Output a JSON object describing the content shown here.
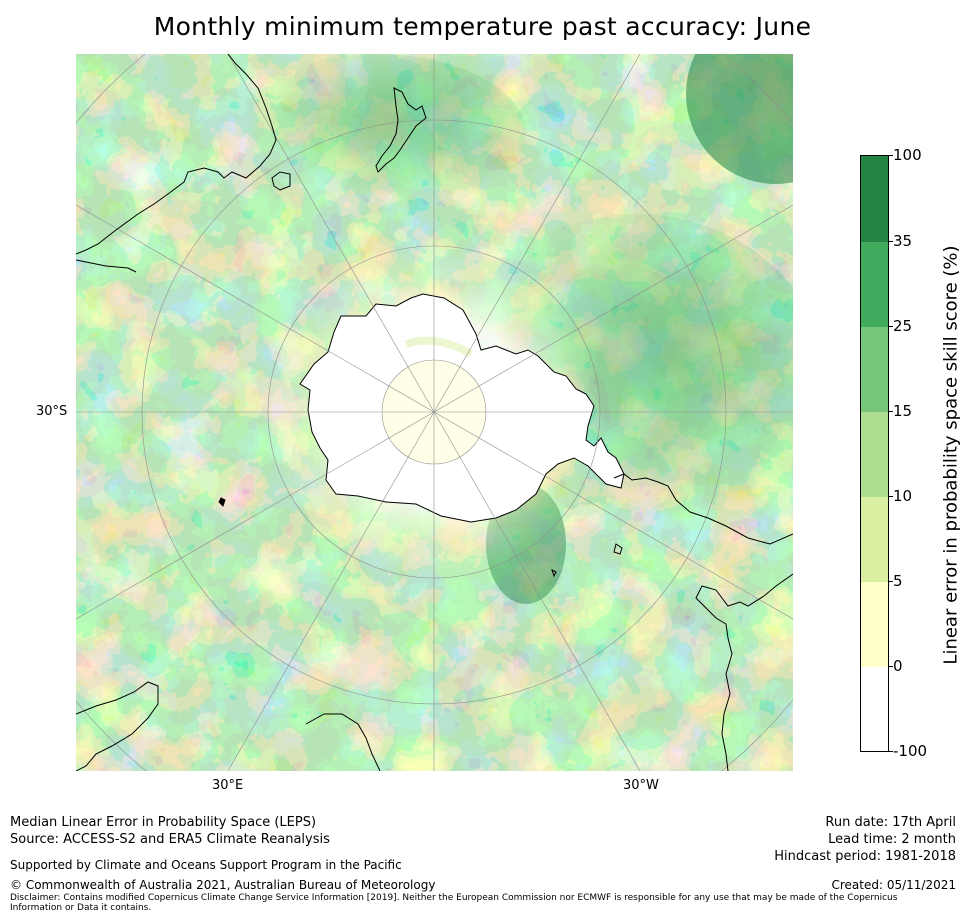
{
  "title": "Monthly minimum temperature past accuracy: June",
  "map": {
    "projection": "south polar stereographic",
    "lon_labels": [
      "30°E",
      "30°W"
    ],
    "lat_label": "30°S",
    "colors": {
      "ocean_base": "#addb90",
      "land_outline": "#000000",
      "graticule": "#9a9a9a"
    }
  },
  "colorbar": {
    "label": "Linear error in probability space skill score (%)",
    "ticks": [
      "100",
      "35",
      "25",
      "15",
      "10",
      "5",
      "0",
      "-100"
    ],
    "bins": [
      {
        "range": "35 to 100",
        "color": "#238443"
      },
      {
        "range": "25 to 35",
        "color": "#41ab5d"
      },
      {
        "range": "15 to 25",
        "color": "#78c679"
      },
      {
        "range": "10 to 15",
        "color": "#addd8e"
      },
      {
        "range": "5 to 10",
        "color": "#d9f0a3"
      },
      {
        "range": "0 to 5",
        "color": "#ffffcc"
      },
      {
        "range": "-100 to 0",
        "color": "#ffffff"
      }
    ]
  },
  "footer": {
    "line1": "Median Linear Error in Probability Space (LEPS)",
    "line2": "Source: ACCESS-S2 and ERA5 Climate Reanalysis",
    "supported": "Supported by Climate and Oceans Support Program in the Pacific",
    "copyright": "© Commonwealth of Australia 2021, Australian Bureau of Meteorology",
    "disclaimer_1": "Disclaimer: Contains modified Copernicus Climate Change Service Information [2019]. Neither the European Commission nor ECMWF is responsible for any use that may be made of the Copernicus",
    "disclaimer_2": "Information or Data it contains.",
    "run_date": "Run date: 17th April",
    "lead_time": "Lead time: 2 month",
    "hindcast": "Hindcast period: 1981-2018",
    "created": "Created: 05/11/2021"
  }
}
